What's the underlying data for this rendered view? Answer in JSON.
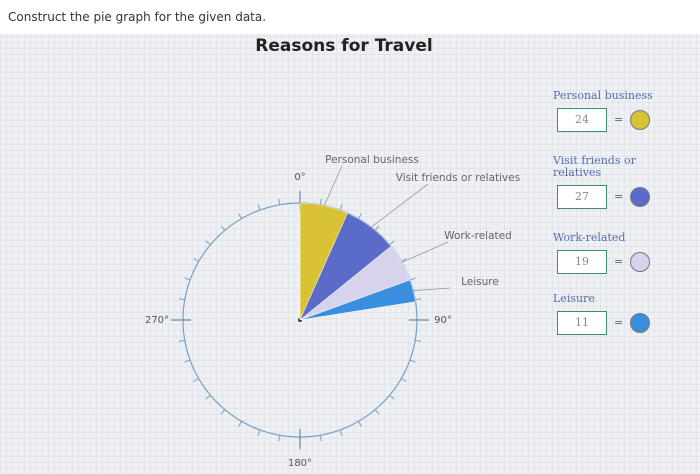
{
  "instruction": "Construct the pie graph for the given data.",
  "chart_data": {
    "type": "pie",
    "title": "Reasons for Travel",
    "categories": [
      "Personal business",
      "Visit friends or relatives",
      "Work-related",
      "Leisure"
    ],
    "values": [
      24,
      27,
      19,
      11
    ],
    "colors": [
      "#d8c236",
      "#5a6bc8",
      "#d8d3ec",
      "#3a8ee0"
    ],
    "angle_ticks": [
      {
        "value": 0,
        "label": "0°"
      },
      {
        "value": 90,
        "label": "90°"
      },
      {
        "value": 180,
        "label": "180°"
      },
      {
        "value": 270,
        "label": "270°"
      }
    ]
  }
}
